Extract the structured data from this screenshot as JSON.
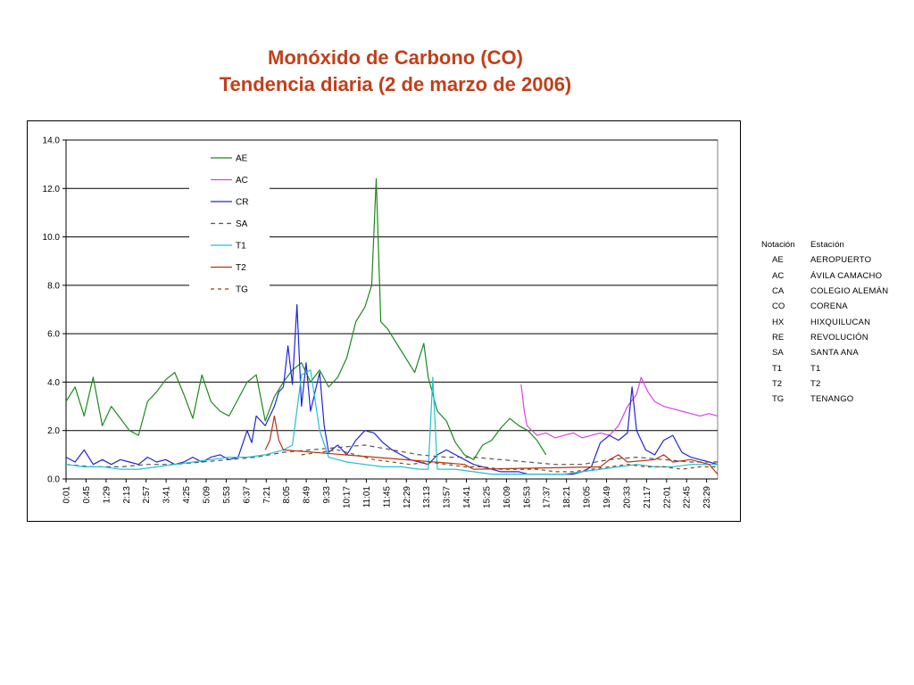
{
  "title": {
    "line1": "Monóxido de Carbono (CO)",
    "line2": "Tendencia diaria (2 de marzo de 2006)"
  },
  "station_table": {
    "headers": {
      "code": "Notación",
      "name": "Estación"
    },
    "rows": [
      {
        "code": "AE",
        "name": "AEROPUERTO"
      },
      {
        "code": "AC",
        "name": "ÁVILA CAMACHO"
      },
      {
        "code": "CA",
        "name": "COLEGIO ALEMÁN"
      },
      {
        "code": "CO",
        "name": "CORENA"
      },
      {
        "code": "HX",
        "name": "HIXQUILUCAN"
      },
      {
        "code": "RE",
        "name": "REVOLUCIÓN"
      },
      {
        "code": "SA",
        "name": "SANTA ANA"
      },
      {
        "code": "T1",
        "name": "T1"
      },
      {
        "code": "T2",
        "name": "T2"
      },
      {
        "code": "TG",
        "name": "TENANGO"
      }
    ]
  },
  "chart_data": {
    "type": "line",
    "x_unit": "minute of day",
    "x_ticks": [
      "0:01",
      "0:45",
      "1:29",
      "2:13",
      "2:57",
      "3:41",
      "4:25",
      "5:09",
      "5:53",
      "6:37",
      "7:21",
      "8:05",
      "8:49",
      "9:33",
      "10:17",
      "11:01",
      "11:45",
      "12:29",
      "13:13",
      "13:57",
      "14:41",
      "15:25",
      "16:09",
      "16:53",
      "17:37",
      "18:21",
      "19:05",
      "19:49",
      "20:33",
      "21:17",
      "22:01",
      "22:45",
      "23:29"
    ],
    "ylim": [
      0,
      14
    ],
    "y_ticks": [
      "0.0",
      "2.0",
      "4.0",
      "6.0",
      "8.0",
      "10.0",
      "12.0",
      "14.0"
    ],
    "grid": "horizontal",
    "legend_position": "top-left",
    "series": [
      {
        "name": "AE",
        "color": "#1a8a1a",
        "dash": "",
        "points": [
          [
            0,
            3.2
          ],
          [
            20,
            3.8
          ],
          [
            40,
            2.6
          ],
          [
            60,
            4.2
          ],
          [
            80,
            2.2
          ],
          [
            100,
            3.0
          ],
          [
            120,
            2.5
          ],
          [
            140,
            2.0
          ],
          [
            160,
            1.8
          ],
          [
            180,
            3.2
          ],
          [
            200,
            3.6
          ],
          [
            220,
            4.1
          ],
          [
            240,
            4.4
          ],
          [
            260,
            3.5
          ],
          [
            280,
            2.5
          ],
          [
            300,
            4.3
          ],
          [
            320,
            3.2
          ],
          [
            340,
            2.8
          ],
          [
            360,
            2.6
          ],
          [
            380,
            3.3
          ],
          [
            400,
            4.0
          ],
          [
            420,
            4.3
          ],
          [
            440,
            2.4
          ],
          [
            460,
            3.4
          ],
          [
            480,
            4.0
          ],
          [
            500,
            4.5
          ],
          [
            520,
            4.8
          ],
          [
            540,
            4.0
          ],
          [
            560,
            4.5
          ],
          [
            580,
            3.8
          ],
          [
            600,
            4.2
          ],
          [
            620,
            5.0
          ],
          [
            640,
            6.5
          ],
          [
            660,
            7.1
          ],
          [
            675,
            8.0
          ],
          [
            685,
            12.4
          ],
          [
            695,
            6.5
          ],
          [
            710,
            6.2
          ],
          [
            730,
            5.6
          ],
          [
            750,
            5.0
          ],
          [
            770,
            4.4
          ],
          [
            790,
            5.6
          ],
          [
            800,
            4.2
          ],
          [
            820,
            2.8
          ],
          [
            840,
            2.4
          ],
          [
            860,
            1.5
          ],
          [
            880,
            1.0
          ],
          [
            900,
            0.8
          ],
          [
            920,
            1.4
          ],
          [
            940,
            1.6
          ],
          [
            960,
            2.1
          ],
          [
            980,
            2.5
          ],
          [
            1000,
            2.2
          ],
          [
            1020,
            2.0
          ],
          [
            1040,
            1.6
          ],
          [
            1060,
            1.0
          ]
        ]
      },
      {
        "name": "AC",
        "color": "#e040e0",
        "dash": "",
        "points": [
          [
            1005,
            3.9
          ],
          [
            1012,
            2.8
          ],
          [
            1018,
            2.2
          ],
          [
            1040,
            1.8
          ],
          [
            1060,
            1.9
          ],
          [
            1080,
            1.7
          ],
          [
            1100,
            1.8
          ],
          [
            1120,
            1.9
          ],
          [
            1140,
            1.7
          ],
          [
            1160,
            1.8
          ],
          [
            1180,
            1.9
          ],
          [
            1200,
            1.8
          ],
          [
            1220,
            2.2
          ],
          [
            1240,
            3.0
          ],
          [
            1260,
            3.5
          ],
          [
            1270,
            4.2
          ],
          [
            1285,
            3.6
          ],
          [
            1300,
            3.2
          ],
          [
            1320,
            3.0
          ],
          [
            1340,
            2.9
          ],
          [
            1360,
            2.8
          ],
          [
            1380,
            2.7
          ],
          [
            1400,
            2.6
          ],
          [
            1420,
            2.7
          ],
          [
            1439,
            2.6
          ]
        ]
      },
      {
        "name": "CR",
        "color": "#1f26d9",
        "dash": "",
        "points": [
          [
            0,
            0.9
          ],
          [
            20,
            0.7
          ],
          [
            40,
            1.2
          ],
          [
            60,
            0.6
          ],
          [
            80,
            0.8
          ],
          [
            100,
            0.6
          ],
          [
            120,
            0.8
          ],
          [
            140,
            0.7
          ],
          [
            160,
            0.6
          ],
          [
            180,
            0.9
          ],
          [
            200,
            0.7
          ],
          [
            220,
            0.8
          ],
          [
            240,
            0.6
          ],
          [
            260,
            0.7
          ],
          [
            280,
            0.9
          ],
          [
            300,
            0.7
          ],
          [
            320,
            0.9
          ],
          [
            340,
            1.0
          ],
          [
            360,
            0.8
          ],
          [
            380,
            0.9
          ],
          [
            400,
            2.0
          ],
          [
            410,
            1.5
          ],
          [
            420,
            2.6
          ],
          [
            440,
            2.2
          ],
          [
            460,
            3.0
          ],
          [
            470,
            3.6
          ],
          [
            480,
            3.8
          ],
          [
            490,
            5.5
          ],
          [
            500,
            3.9
          ],
          [
            510,
            7.2
          ],
          [
            520,
            3.0
          ],
          [
            530,
            4.8
          ],
          [
            540,
            2.8
          ],
          [
            550,
            3.6
          ],
          [
            560,
            4.4
          ],
          [
            570,
            2.2
          ],
          [
            580,
            1.1
          ],
          [
            600,
            1.4
          ],
          [
            620,
            1.0
          ],
          [
            640,
            1.6
          ],
          [
            660,
            2.0
          ],
          [
            680,
            1.9
          ],
          [
            700,
            1.5
          ],
          [
            720,
            1.2
          ],
          [
            740,
            1.0
          ],
          [
            760,
            0.8
          ],
          [
            780,
            0.7
          ],
          [
            800,
            0.6
          ],
          [
            820,
            1.0
          ],
          [
            840,
            1.2
          ],
          [
            860,
            1.0
          ],
          [
            880,
            0.8
          ],
          [
            900,
            0.6
          ],
          [
            920,
            0.5
          ],
          [
            940,
            0.4
          ],
          [
            960,
            0.3
          ],
          [
            980,
            0.3
          ],
          [
            1000,
            0.3
          ],
          [
            1020,
            0.2
          ],
          [
            1040,
            0.2
          ],
          [
            1060,
            0.2
          ],
          [
            1080,
            0.2
          ],
          [
            1100,
            0.2
          ],
          [
            1120,
            0.2
          ],
          [
            1140,
            0.3
          ],
          [
            1160,
            0.5
          ],
          [
            1180,
            1.5
          ],
          [
            1200,
            1.8
          ],
          [
            1220,
            1.6
          ],
          [
            1240,
            1.9
          ],
          [
            1250,
            3.8
          ],
          [
            1260,
            2.0
          ],
          [
            1280,
            1.2
          ],
          [
            1300,
            1.0
          ],
          [
            1320,
            1.6
          ],
          [
            1340,
            1.8
          ],
          [
            1360,
            1.1
          ],
          [
            1380,
            0.9
          ],
          [
            1400,
            0.8
          ],
          [
            1420,
            0.7
          ],
          [
            1439,
            0.6
          ]
        ]
      },
      {
        "name": "SA",
        "color": "#555555",
        "dash": "5,4",
        "points": [
          [
            0,
            0.6
          ],
          [
            60,
            0.5
          ],
          [
            120,
            0.5
          ],
          [
            180,
            0.6
          ],
          [
            240,
            0.6
          ],
          [
            300,
            0.7
          ],
          [
            360,
            0.8
          ],
          [
            420,
            0.9
          ],
          [
            480,
            1.1
          ],
          [
            540,
            1.2
          ],
          [
            600,
            1.3
          ],
          [
            660,
            1.4
          ],
          [
            720,
            1.2
          ],
          [
            780,
            1.0
          ],
          [
            840,
            0.9
          ],
          [
            900,
            0.9
          ],
          [
            960,
            0.8
          ],
          [
            1020,
            0.7
          ],
          [
            1080,
            0.6
          ],
          [
            1140,
            0.6
          ],
          [
            1200,
            0.8
          ],
          [
            1260,
            0.9
          ],
          [
            1320,
            0.8
          ],
          [
            1380,
            0.7
          ],
          [
            1439,
            0.7
          ]
        ]
      },
      {
        "name": "T1",
        "color": "#22c0d8",
        "dash": "",
        "points": [
          [
            0,
            0.6
          ],
          [
            40,
            0.5
          ],
          [
            80,
            0.5
          ],
          [
            120,
            0.4
          ],
          [
            160,
            0.4
          ],
          [
            200,
            0.5
          ],
          [
            240,
            0.6
          ],
          [
            280,
            0.7
          ],
          [
            320,
            0.8
          ],
          [
            360,
            0.9
          ],
          [
            400,
            0.9
          ],
          [
            440,
            1.0
          ],
          [
            480,
            1.2
          ],
          [
            500,
            1.4
          ],
          [
            520,
            4.3
          ],
          [
            540,
            4.5
          ],
          [
            560,
            2.0
          ],
          [
            580,
            0.9
          ],
          [
            620,
            0.7
          ],
          [
            660,
            0.6
          ],
          [
            700,
            0.5
          ],
          [
            740,
            0.5
          ],
          [
            780,
            0.4
          ],
          [
            800,
            0.4
          ],
          [
            810,
            4.2
          ],
          [
            820,
            0.4
          ],
          [
            860,
            0.4
          ],
          [
            900,
            0.3
          ],
          [
            940,
            0.2
          ],
          [
            980,
            0.2
          ],
          [
            1020,
            0.2
          ],
          [
            1060,
            0.2
          ],
          [
            1100,
            0.2
          ],
          [
            1140,
            0.3
          ],
          [
            1180,
            0.4
          ],
          [
            1220,
            0.5
          ],
          [
            1260,
            0.6
          ],
          [
            1300,
            0.5
          ],
          [
            1340,
            0.5
          ],
          [
            1380,
            0.6
          ],
          [
            1420,
            0.6
          ],
          [
            1439,
            0.6
          ]
        ]
      },
      {
        "name": "T2",
        "color": "#b8340f",
        "dash": "",
        "points": [
          [
            440,
            1.2
          ],
          [
            450,
            1.6
          ],
          [
            460,
            2.6
          ],
          [
            470,
            1.6
          ],
          [
            480,
            1.2
          ],
          [
            880,
            0.6
          ],
          [
            900,
            0.4
          ],
          [
            1180,
            0.5
          ],
          [
            1200,
            0.8
          ],
          [
            1220,
            1.0
          ],
          [
            1240,
            0.7
          ],
          [
            1300,
            0.8
          ],
          [
            1320,
            1.0
          ],
          [
            1340,
            0.7
          ],
          [
            1380,
            0.8
          ],
          [
            1420,
            0.6
          ],
          [
            1439,
            0.2
          ]
        ]
      },
      {
        "name": "TG",
        "color": "#8b4513",
        "dash": "4,4",
        "points": [
          [
            520,
            1.0
          ],
          [
            560,
            1.1
          ],
          [
            600,
            1.2
          ],
          [
            640,
            1.0
          ],
          [
            680,
            0.8
          ],
          [
            720,
            0.7
          ],
          [
            760,
            0.6
          ],
          [
            800,
            0.7
          ],
          [
            840,
            0.6
          ],
          [
            880,
            0.5
          ],
          [
            920,
            0.5
          ],
          [
            960,
            0.4
          ],
          [
            1000,
            0.4
          ],
          [
            1040,
            0.4
          ],
          [
            1080,
            0.3
          ],
          [
            1120,
            0.3
          ],
          [
            1160,
            0.4
          ],
          [
            1200,
            0.5
          ],
          [
            1240,
            0.6
          ],
          [
            1280,
            0.5
          ],
          [
            1320,
            0.5
          ],
          [
            1360,
            0.4
          ],
          [
            1400,
            0.5
          ],
          [
            1439,
            0.5
          ]
        ]
      }
    ]
  }
}
